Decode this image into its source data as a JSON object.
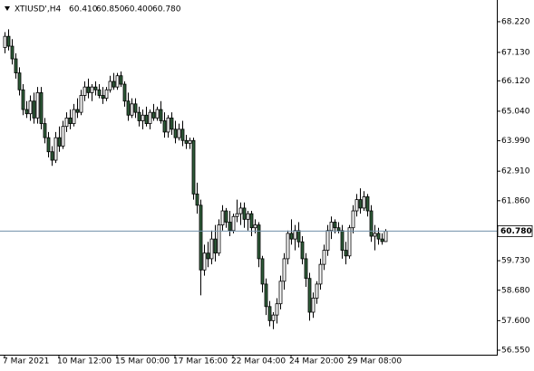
{
  "header": {
    "symbol": "XTIUSD',H4",
    "values": [
      "60.410",
      "60.850",
      "60.400",
      "60.780"
    ]
  },
  "chart_data": {
    "type": "candlestick",
    "categories": [
      "7 Mar 2021",
      null,
      null,
      null,
      null,
      null,
      null,
      null,
      null,
      null,
      null,
      null,
      null,
      null,
      null,
      "10 Mar 12:00",
      null,
      null,
      null,
      null,
      null,
      null,
      null,
      null,
      null,
      null,
      null,
      null,
      null,
      null,
      null,
      "15 Mar 00:00",
      null,
      null,
      null,
      null,
      null,
      null,
      null,
      null,
      null,
      null,
      null,
      null,
      null,
      null,
      null,
      "17 Mar 16:00",
      null,
      null,
      null,
      null,
      null,
      null,
      null,
      null,
      null,
      null,
      null,
      null,
      null,
      null,
      null,
      "22 Mar 04:00",
      null,
      null,
      null,
      null,
      null,
      null,
      null,
      null,
      null,
      null,
      null,
      null,
      null,
      null,
      null,
      "24 Mar 20:00",
      null,
      null,
      null,
      null,
      null,
      null,
      null,
      null,
      null,
      null,
      null,
      null,
      null,
      null,
      null,
      "29 Mar 08:00",
      null,
      null,
      null,
      null,
      null,
      null,
      null,
      null,
      null,
      null
    ],
    "ohlc": [
      [
        67.3,
        67.85,
        67.1,
        67.7
      ],
      [
        67.7,
        67.95,
        67.2,
        67.35
      ],
      [
        67.35,
        67.6,
        66.7,
        66.9
      ],
      [
        66.9,
        67.1,
        66.2,
        66.4
      ],
      [
        66.4,
        66.6,
        65.6,
        65.8
      ],
      [
        65.8,
        66.0,
        64.9,
        65.1
      ],
      [
        65.1,
        65.4,
        64.8,
        64.95
      ],
      [
        64.95,
        65.6,
        64.7,
        65.4
      ],
      [
        65.4,
        65.7,
        64.6,
        64.8
      ],
      [
        64.8,
        65.9,
        64.6,
        65.7
      ],
      [
        65.7,
        65.9,
        64.4,
        64.6
      ],
      [
        64.6,
        64.8,
        63.9,
        64.1
      ],
      [
        64.1,
        64.3,
        63.4,
        63.6
      ],
      [
        63.6,
        63.8,
        63.1,
        63.3
      ],
      [
        63.3,
        64.3,
        63.2,
        64.1
      ],
      [
        64.1,
        64.5,
        63.6,
        63.8
      ],
      [
        63.8,
        64.7,
        63.7,
        64.5
      ],
      [
        64.5,
        65.0,
        64.3,
        64.8
      ],
      [
        64.8,
        65.1,
        64.4,
        64.6
      ],
      [
        64.6,
        65.3,
        64.5,
        65.1
      ],
      [
        65.1,
        65.5,
        64.8,
        65.0
      ],
      [
        65.0,
        65.8,
        64.9,
        65.6
      ],
      [
        65.6,
        66.1,
        65.4,
        65.9
      ],
      [
        65.9,
        66.2,
        65.5,
        65.7
      ],
      [
        65.7,
        66.0,
        65.4,
        65.9
      ],
      [
        65.9,
        66.1,
        65.6,
        65.8
      ],
      [
        65.8,
        66.0,
        65.5,
        65.6
      ],
      [
        65.6,
        65.9,
        65.3,
        65.5
      ],
      [
        65.5,
        65.9,
        65.4,
        65.8
      ],
      [
        65.8,
        66.3,
        65.7,
        66.1
      ],
      [
        66.1,
        66.4,
        65.8,
        65.9
      ],
      [
        65.9,
        66.4,
        65.8,
        66.3
      ],
      [
        66.3,
        66.45,
        65.9,
        66.0
      ],
      [
        66.0,
        66.1,
        65.2,
        65.4
      ],
      [
        65.4,
        65.7,
        64.7,
        64.9
      ],
      [
        64.9,
        65.5,
        64.8,
        65.3
      ],
      [
        65.3,
        65.5,
        64.8,
        65.0
      ],
      [
        65.0,
        65.2,
        64.5,
        64.7
      ],
      [
        64.7,
        65.1,
        64.4,
        64.9
      ],
      [
        64.9,
        65.2,
        64.5,
        64.6
      ],
      [
        64.6,
        65.1,
        64.4,
        65.0
      ],
      [
        65.0,
        65.3,
        64.7,
        64.8
      ],
      [
        64.8,
        65.2,
        64.7,
        65.1
      ],
      [
        65.1,
        65.4,
        64.6,
        64.7
      ],
      [
        64.7,
        65.0,
        64.1,
        64.3
      ],
      [
        64.3,
        64.9,
        64.1,
        64.8
      ],
      [
        64.8,
        65.0,
        64.2,
        64.4
      ],
      [
        64.4,
        64.7,
        63.9,
        64.1
      ],
      [
        64.1,
        64.6,
        64.0,
        64.4
      ],
      [
        64.4,
        64.7,
        63.8,
        64.0
      ],
      [
        64.0,
        64.2,
        63.7,
        63.9
      ],
      [
        63.9,
        64.1,
        63.7,
        64.0
      ],
      [
        64.0,
        64.1,
        61.9,
        62.1
      ],
      [
        62.1,
        62.5,
        61.4,
        61.7
      ],
      [
        61.7,
        61.9,
        58.5,
        59.4
      ],
      [
        59.4,
        60.3,
        59.2,
        60.0
      ],
      [
        60.0,
        60.4,
        59.5,
        59.8
      ],
      [
        59.8,
        60.8,
        59.6,
        60.5
      ],
      [
        60.5,
        61.0,
        59.7,
        60.0
      ],
      [
        60.0,
        61.2,
        59.9,
        61.0
      ],
      [
        61.0,
        61.7,
        60.8,
        61.5
      ],
      [
        61.5,
        61.6,
        60.9,
        61.1
      ],
      [
        61.1,
        61.5,
        60.6,
        60.8
      ],
      [
        60.8,
        61.4,
        60.7,
        61.3
      ],
      [
        61.3,
        61.9,
        61.1,
        61.4
      ],
      [
        61.4,
        61.8,
        61.0,
        61.6
      ],
      [
        61.6,
        61.8,
        60.9,
        61.2
      ],
      [
        61.2,
        61.5,
        60.8,
        61.4
      ],
      [
        61.4,
        61.5,
        60.6,
        60.9
      ],
      [
        60.9,
        61.2,
        60.7,
        61.0
      ],
      [
        61.0,
        61.1,
        59.5,
        59.8
      ],
      [
        59.8,
        59.9,
        58.6,
        58.9
      ],
      [
        58.9,
        59.1,
        57.8,
        58.1
      ],
      [
        58.1,
        58.3,
        57.4,
        57.6
      ],
      [
        57.6,
        57.9,
        57.3,
        57.8
      ],
      [
        57.8,
        58.4,
        57.5,
        58.2
      ],
      [
        58.2,
        59.2,
        58.0,
        59.0
      ],
      [
        59.0,
        60.0,
        58.7,
        59.8
      ],
      [
        59.8,
        60.8,
        59.6,
        60.7
      ],
      [
        60.7,
        61.2,
        60.3,
        60.5
      ],
      [
        60.5,
        61.0,
        60.1,
        60.8
      ],
      [
        60.8,
        61.1,
        60.2,
        60.4
      ],
      [
        60.4,
        60.6,
        59.6,
        59.8
      ],
      [
        59.8,
        60.0,
        58.8,
        59.1
      ],
      [
        59.1,
        59.3,
        57.6,
        57.9
      ],
      [
        57.9,
        58.6,
        57.7,
        58.4
      ],
      [
        58.4,
        59.0,
        58.2,
        58.9
      ],
      [
        58.9,
        59.8,
        58.7,
        59.6
      ],
      [
        59.6,
        60.3,
        59.4,
        60.1
      ],
      [
        60.1,
        61.0,
        59.9,
        60.8
      ],
      [
        60.8,
        61.3,
        60.5,
        61.1
      ],
      [
        61.1,
        61.2,
        60.7,
        60.9
      ],
      [
        60.9,
        61.1,
        60.7,
        60.8
      ],
      [
        60.8,
        61.0,
        59.8,
        60.1
      ],
      [
        60.1,
        60.4,
        59.6,
        59.9
      ],
      [
        59.9,
        61.0,
        59.8,
        60.9
      ],
      [
        60.9,
        61.7,
        60.7,
        61.5
      ],
      [
        61.5,
        62.1,
        61.3,
        61.9
      ],
      [
        61.9,
        62.3,
        61.4,
        61.6
      ],
      [
        61.6,
        62.2,
        61.5,
        62.0
      ],
      [
        62.0,
        62.1,
        61.3,
        61.5
      ],
      [
        61.5,
        61.7,
        60.4,
        60.6
      ],
      [
        60.6,
        61.0,
        60.1,
        60.7
      ],
      [
        60.7,
        60.9,
        60.3,
        60.5
      ],
      [
        60.5,
        60.7,
        60.3,
        60.41
      ],
      [
        60.41,
        60.85,
        60.4,
        60.78
      ]
    ],
    "ylim": [
      56.39,
      68.83
    ],
    "yticks": [
      {
        "value": 68.22,
        "label": "68.220"
      },
      {
        "value": 67.13,
        "label": "67.130"
      },
      {
        "value": 66.12,
        "label": "66.120"
      },
      {
        "value": 65.04,
        "label": "65.040"
      },
      {
        "value": 63.99,
        "label": "63.990"
      },
      {
        "value": 62.91,
        "label": "62.910"
      },
      {
        "value": 61.86,
        "label": "61.860"
      },
      {
        "value": 59.73,
        "label": "59.730"
      },
      {
        "value": 58.68,
        "label": "58.680"
      },
      {
        "value": 57.6,
        "label": "57.600"
      },
      {
        "value": 56.55,
        "label": "56.550"
      }
    ],
    "current_price": {
      "value": 60.78,
      "label": "60.780"
    },
    "bull_color": "#ffffff",
    "bear_color": "#2f5d3a",
    "wick_color": "#000000",
    "price_line_color": "#6f8fa8",
    "grid": false
  }
}
